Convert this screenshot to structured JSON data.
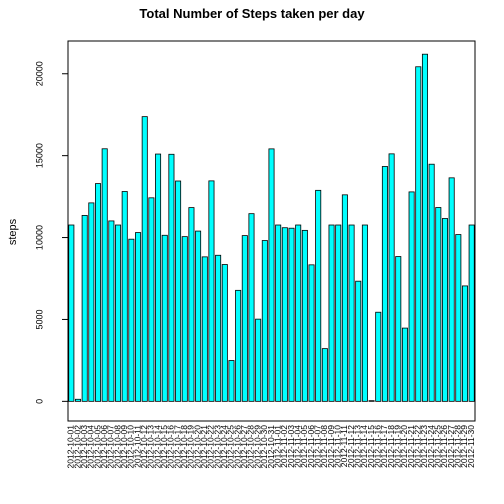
{
  "chart_data": {
    "type": "bar",
    "title": "Total Number of Steps taken per day",
    "xlabel": "",
    "ylabel": "steps",
    "ylim": [
      -1200,
      22000
    ],
    "y_ticks": [
      0,
      5000,
      10000,
      15000,
      20000
    ],
    "grid": false,
    "bar_color": "#00FFFF",
    "bar_border_color": "#000000",
    "categories": [
      "2012-10-01",
      "2012-10-02",
      "2012-10-03",
      "2012-10-04",
      "2012-10-05",
      "2012-10-06",
      "2012-10-07",
      "2012-10-08",
      "2012-10-09",
      "2012-10-10",
      "2012-10-11",
      "2012-10-12",
      "2012-10-13",
      "2012-10-14",
      "2012-10-15",
      "2012-10-16",
      "2012-10-17",
      "2012-10-18",
      "2012-10-19",
      "2012-10-20",
      "2012-10-21",
      "2012-10-22",
      "2012-10-23",
      "2012-10-24",
      "2012-10-25",
      "2012-10-26",
      "2012-10-27",
      "2012-10-28",
      "2012-10-29",
      "2012-10-30",
      "2012-10-31",
      "2012-11-01",
      "2012-11-02",
      "2012-11-03",
      "2012-11-04",
      "2012-11-05",
      "2012-11-06",
      "2012-11-07",
      "2012-11-08",
      "2012-11-09",
      "2012-11-10",
      "2012-11-11",
      "2012-11-12",
      "2012-11-13",
      "2012-11-14",
      "2012-11-15",
      "2012-11-16",
      "2012-11-17",
      "2012-11-18",
      "2012-11-19",
      "2012-11-20",
      "2012-11-21",
      "2012-11-22",
      "2012-11-23",
      "2012-11-24",
      "2012-11-25",
      "2012-11-26",
      "2012-11-27",
      "2012-11-28",
      "2012-11-29",
      "2012-11-30"
    ],
    "values": [
      10766,
      126,
      11352,
      12116,
      13294,
      15420,
      11015,
      10766,
      12811,
      9900,
      10304,
      17382,
      12426,
      15098,
      10139,
      15084,
      13452,
      10056,
      11829,
      10395,
      8821,
      13460,
      8918,
      8355,
      2492,
      6778,
      10119,
      11458,
      5018,
      9819,
      15414,
      10766,
      10600,
      10571,
      10766,
      10439,
      8334,
      12883,
      3219,
      10766,
      10766,
      12608,
      10765,
      7336,
      10766,
      41,
      5441,
      14339,
      15110,
      8841,
      4472,
      12787,
      20427,
      21194,
      14478,
      11834,
      11162,
      13646,
      10183,
      7047,
      10766
    ]
  }
}
